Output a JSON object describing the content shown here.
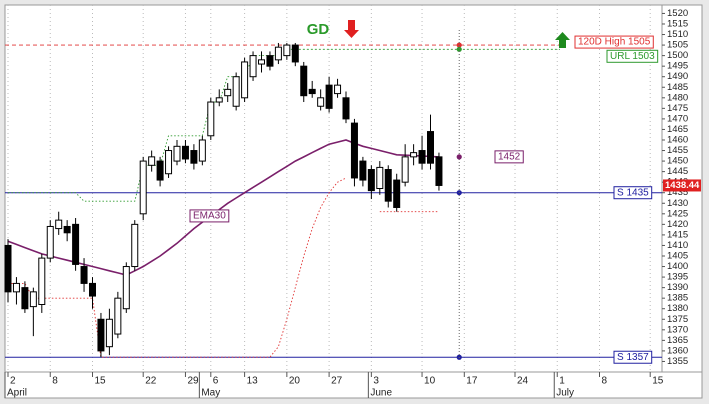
{
  "chart_data": {
    "type": "candlestick",
    "categories": [
      "2",
      null,
      null,
      null,
      null,
      "8",
      null,
      null,
      null,
      null,
      "15",
      null,
      null,
      null,
      null,
      null,
      "22",
      null,
      null,
      null,
      null,
      "29",
      null,
      null,
      "6",
      null,
      null,
      null,
      "13",
      null,
      null,
      null,
      null,
      "20",
      null,
      null,
      null,
      null,
      "27",
      null,
      null,
      null,
      null,
      "3",
      null,
      null,
      null,
      null,
      null,
      "10",
      null,
      null,
      null,
      null,
      "17",
      null,
      null,
      null,
      null,
      null,
      "24",
      null,
      null,
      null,
      null,
      "1",
      null,
      null,
      null,
      null,
      "8",
      null,
      null,
      null,
      null,
      null,
      "15",
      null
    ],
    "months": [
      "April",
      null,
      null,
      null,
      null,
      null,
      null,
      null,
      null,
      null,
      null,
      null,
      null,
      null,
      null,
      null,
      null,
      null,
      null,
      null,
      null,
      null,
      null,
      "May",
      null,
      null,
      null,
      null,
      null,
      null,
      null,
      null,
      null,
      null,
      null,
      null,
      null,
      null,
      null,
      null,
      null,
      null,
      null,
      "June",
      null,
      null,
      null,
      null,
      null,
      null,
      null,
      null,
      null,
      null,
      null,
      null,
      null,
      null,
      null,
      null,
      null,
      null,
      null,
      null,
      null,
      "July",
      null,
      null,
      null,
      null,
      null,
      null,
      null,
      null,
      null,
      null,
      null,
      null
    ],
    "open": [
      1410,
      1388,
      1390,
      1381,
      1382,
      1404,
      1418,
      1419,
      1420,
      1400,
      1392,
      1375,
      1362,
      1368,
      1380,
      1400,
      1425,
      1448,
      1450,
      1444,
      1450,
      1457,
      1455,
      1450,
      1462,
      1478,
      1481,
      1476,
      1480,
      1490,
      1496,
      1500,
      1498,
      1500,
      1505,
      1495,
      1484,
      1476,
      1486,
      1482,
      1480,
      1468,
      1450,
      1446,
      1437,
      1446,
      1441,
      1440,
      1452,
      1455,
      1464,
      1452,
      null,
      null,
      null,
      null,
      null,
      null,
      null,
      null,
      null,
      null,
      null,
      null,
      null,
      null,
      null,
      null,
      null,
      null,
      null,
      null,
      null,
      null,
      null,
      null,
      null,
      null
    ],
    "high": [
      1413,
      1395,
      1393,
      1390,
      1406,
      1422,
      1426,
      1422,
      1423,
      1404,
      1395,
      1378,
      1380,
      1388,
      1402,
      1422,
      1452,
      1455,
      1452,
      1457,
      1460,
      1460,
      1458,
      1462,
      1480,
      1484,
      1487,
      1492,
      1499,
      1502,
      1502,
      1502,
      1506,
      1506,
      1506,
      1497,
      1488,
      1484,
      1490,
      1489,
      1483,
      1470,
      1452,
      1448,
      1450,
      1448,
      1444,
      1458,
      1458,
      1462,
      1472,
      1454,
      null,
      null,
      null,
      null,
      null,
      null,
      null,
      null,
      null,
      null,
      null,
      null,
      null,
      null,
      null,
      null,
      null,
      null,
      null,
      null,
      null,
      null,
      null,
      null,
      null,
      null
    ],
    "low": [
      1383,
      1382,
      1378,
      1367,
      1378,
      1402,
      1415,
      1412,
      1398,
      1388,
      1380,
      1357,
      1358,
      1366,
      1378,
      1398,
      1422,
      1445,
      1438,
      1442,
      1448,
      1449,
      1446,
      1448,
      1460,
      1476,
      1478,
      1474,
      1478,
      1488,
      1492,
      1493,
      1496,
      1498,
      1495,
      1478,
      1480,
      1474,
      1473,
      1480,
      1468,
      1438,
      1438,
      1432,
      1434,
      1428,
      1426,
      1438,
      1448,
      1446,
      1446,
      1436,
      null,
      null,
      null,
      null,
      null,
      null,
      null,
      null,
      null,
      null,
      null,
      null,
      null,
      null,
      null,
      null,
      null,
      null,
      null,
      null,
      null,
      null,
      null,
      null,
      null,
      null
    ],
    "close": [
      1388,
      1392,
      1380,
      1388,
      1404,
      1419,
      1422,
      1416,
      1401,
      1392,
      1386,
      1360,
      1375,
      1385,
      1400,
      1420,
      1450,
      1452,
      1441,
      1455,
      1457,
      1451,
      1449,
      1460,
      1478,
      1480,
      1484,
      1490,
      1497,
      1500,
      1498,
      1495,
      1504,
      1505,
      1497,
      1481,
      1482,
      1480,
      1475,
      1486,
      1470,
      1442,
      1441,
      1436,
      1447,
      1431,
      1428,
      1452,
      1454,
      1449,
      1449,
      1438.44,
      null,
      null,
      null,
      null,
      null,
      null,
      null,
      null,
      null,
      null,
      null,
      null,
      null,
      null,
      null,
      null,
      null,
      null,
      null,
      null,
      null,
      null,
      null,
      null,
      null,
      null
    ],
    "ema": {
      "name": "EMA30",
      "color": "#7a1f6a",
      "values": [
        1412,
        1410.5,
        1409,
        1407.5,
        1406,
        1405,
        1404,
        1403,
        1402,
        1401,
        1400,
        1399,
        1398,
        1397,
        1396,
        1398,
        1400,
        1402.5,
        1405,
        1408,
        1411,
        1414.5,
        1418,
        1421,
        1424,
        1427,
        1430,
        1432.5,
        1435,
        1437.5,
        1440,
        1442.5,
        1445,
        1447.5,
        1450,
        1452,
        1454,
        1456,
        1458,
        1459,
        1460,
        1458.5,
        1457,
        1456,
        1455,
        1454,
        1453,
        1452.8,
        1452.6,
        1452.4,
        1452.2,
        1452,
        null,
        null,
        null,
        null,
        null,
        null,
        null,
        null,
        null,
        null,
        null,
        null,
        null,
        null,
        null,
        null,
        null,
        null,
        null,
        null,
        null,
        null,
        null,
        null,
        null,
        null
      ]
    },
    "stops": [
      {
        "color": "#e03030",
        "values": [
          1392,
          1392,
          1392,
          1385,
          1385,
          1385,
          1385,
          1385,
          1385,
          1385,
          1385,
          1357,
          1357,
          1357,
          1357,
          1357,
          1357,
          1357,
          1357,
          1357,
          1357,
          1357,
          1357,
          1357,
          1357,
          1357,
          1357,
          1357,
          1357,
          1357,
          1357,
          1357,
          1362,
          1375,
          1390,
          1405,
          1418,
          1428,
          1435,
          1440,
          1442,
          null,
          null,
          null,
          1426,
          1426,
          1426,
          1426,
          1426,
          1426,
          1426,
          1426,
          null,
          null,
          null,
          null,
          null,
          null,
          null,
          null,
          null,
          null,
          null,
          null,
          null,
          null,
          null,
          null,
          null,
          null,
          null,
          null,
          null,
          null,
          null,
          null,
          null,
          null
        ]
      },
      {
        "color": "#2e9a2e",
        "values": [
          1435,
          1435,
          1435,
          1435,
          1435,
          1435,
          1435,
          1435,
          1435,
          1431,
          1431,
          1431,
          1431,
          1431,
          1431,
          1431,
          1448,
          1448,
          1448,
          1462,
          1462,
          1462,
          1462,
          1462,
          1478,
          1478,
          1490,
          1490,
          1490,
          1500,
          1500,
          1500,
          1500,
          null,
          null,
          null,
          null,
          null,
          null,
          null,
          null,
          null,
          null,
          null,
          null,
          null,
          null,
          null,
          null,
          null,
          null,
          null,
          null,
          null,
          null,
          null,
          null,
          null,
          null,
          null,
          null,
          null,
          null,
          null,
          null,
          null,
          null,
          null,
          null,
          null,
          null,
          null,
          null,
          null,
          null,
          null,
          null,
          null
        ]
      }
    ],
    "levels": [
      {
        "label": "120D High 1505",
        "value": 1505,
        "color": "#e03030",
        "style": "dashed"
      },
      {
        "label": "URL 1503",
        "value": 1503,
        "color": "#2e9a2e",
        "style": "dotted"
      },
      {
        "label": "S 1435",
        "value": 1435,
        "color": "#2020a0",
        "style": "solid"
      },
      {
        "label": "S 1357",
        "value": 1357,
        "color": "#2020a0",
        "style": "solid"
      }
    ],
    "ema_label": {
      "label": "1452",
      "value": 1452
    },
    "signal": "GD",
    "last_price": 1438.44,
    "ylim": [
      1350,
      1524
    ],
    "yticks": [
      1355,
      1360,
      1365,
      1370,
      1375,
      1380,
      1385,
      1390,
      1395,
      1400,
      1405,
      1410,
      1415,
      1420,
      1425,
      1430,
      1435,
      1440,
      1445,
      1450,
      1455,
      1460,
      1465,
      1470,
      1475,
      1480,
      1485,
      1490,
      1495,
      1500,
      1505,
      1510,
      1515,
      1520
    ]
  }
}
